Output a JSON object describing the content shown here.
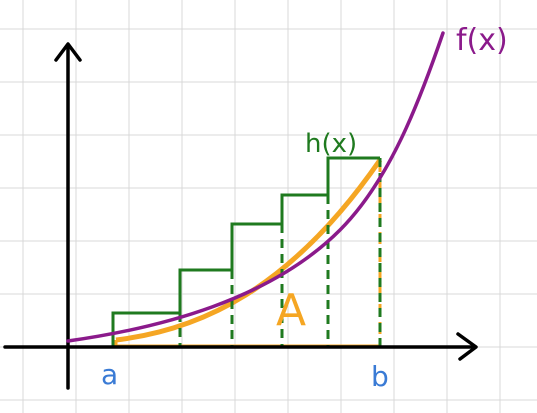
{
  "labels": {
    "f_curve": "f(x)",
    "h_steps": "h(x)",
    "area": "A",
    "a": "a",
    "b": "b"
  },
  "colors": {
    "grid": "#d9d9d9",
    "axis": "#000000",
    "curve": "#8b1a8b",
    "steps": "#1f7a1f",
    "area": "#f5a623",
    "endpoint_label": "#3a7bd5"
  }
}
